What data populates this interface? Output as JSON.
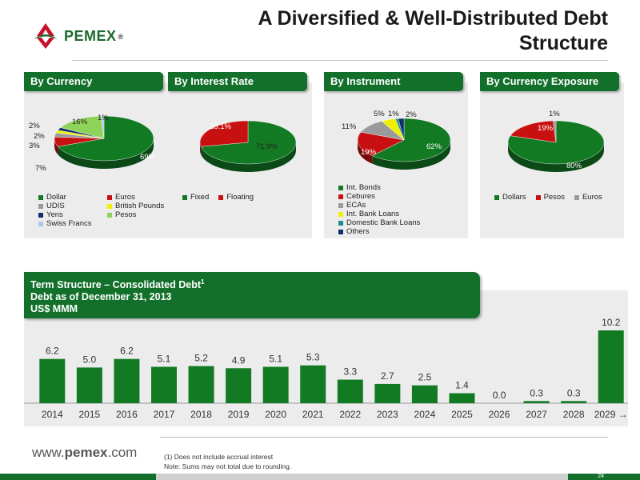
{
  "title": "A Diversified & Well-Distributed Debt Structure",
  "logo": {
    "text": "PEMEX",
    "reg": "®"
  },
  "chart_data": [
    {
      "type": "pie",
      "title": "By Currency",
      "labels": [
        "Dollar",
        "Euros",
        "UDIS",
        "British Pounds",
        "Yens",
        "Pesos",
        "Swiss Francs"
      ],
      "values": [
        69,
        7,
        3,
        2,
        2,
        16,
        1
      ],
      "value_labels": [
        "69%",
        "7%",
        "3%",
        "2%",
        "2%",
        "16%",
        "1%"
      ],
      "colors": [
        "#137a24",
        "#c81010",
        "#9a9a9a",
        "#f0f000",
        "#0f2d6e",
        "#8ed35a",
        "#b0c8e8"
      ],
      "legend": "bottom"
    },
    {
      "type": "pie",
      "title": "By Interest Rate",
      "labels": [
        "Fixed",
        "Floating"
      ],
      "values": [
        71.9,
        28.1
      ],
      "value_labels": [
        "71.9%",
        "28.1%"
      ],
      "colors": [
        "#137a24",
        "#c81010"
      ],
      "legend": "bottom"
    },
    {
      "type": "pie",
      "title": "By Instrument",
      "labels": [
        "Int. Bonds",
        "Cebures",
        "ECAs",
        "Int. Bank Loans",
        "Domestic Bank Loans",
        "Others"
      ],
      "values": [
        62,
        19,
        11,
        5,
        1,
        2
      ],
      "value_labels": [
        "62%",
        "19%",
        "11%",
        "5%",
        "1%",
        "2%"
      ],
      "colors": [
        "#137a24",
        "#c81010",
        "#9a9a9a",
        "#f0f000",
        "#1a8f8f",
        "#0f2d6e"
      ],
      "legend": "bottom"
    },
    {
      "type": "pie",
      "title": "By Currency Exposure",
      "labels": [
        "Dollars",
        "Pesos",
        "Euros"
      ],
      "values": [
        80,
        19,
        1
      ],
      "value_labels": [
        "80%",
        "19%",
        "1%"
      ],
      "colors": [
        "#137a24",
        "#c81010",
        "#9a9a9a"
      ],
      "legend": "bottom"
    },
    {
      "type": "bar",
      "title": "Term Structure – Consolidated Debt",
      "title_note": "1",
      "subtitle": "Debt as of December 31, 2013",
      "unit": "US$ MMM",
      "categories": [
        "2014",
        "2015",
        "2016",
        "2017",
        "2018",
        "2019",
        "2020",
        "2021",
        "2022",
        "2023",
        "2024",
        "2025",
        "2026",
        "2027",
        "2028",
        "2029 →"
      ],
      "values": [
        6.2,
        5.0,
        6.2,
        5.1,
        5.2,
        4.9,
        5.1,
        5.3,
        3.3,
        2.7,
        2.5,
        1.4,
        0.0,
        0.3,
        0.3,
        10.2
      ],
      "value_labels": [
        "6.2",
        "5.0",
        "6.2",
        "5.1",
        "5.2",
        "4.9",
        "5.1",
        "5.3",
        "3.3",
        "2.7",
        "2.5",
        "1.4",
        "0.0",
        "0.3",
        "0.3",
        "10.2"
      ],
      "color": "#137a24",
      "ylim": [
        0,
        10.2
      ]
    }
  ],
  "footer": {
    "website_prefix": "www.",
    "website_bold": "pemex",
    "website_suffix": ".com",
    "note1": "(1)   Does not include accrual interest",
    "note2": "Note: Sums may not total due to rounding.",
    "page": "24"
  }
}
